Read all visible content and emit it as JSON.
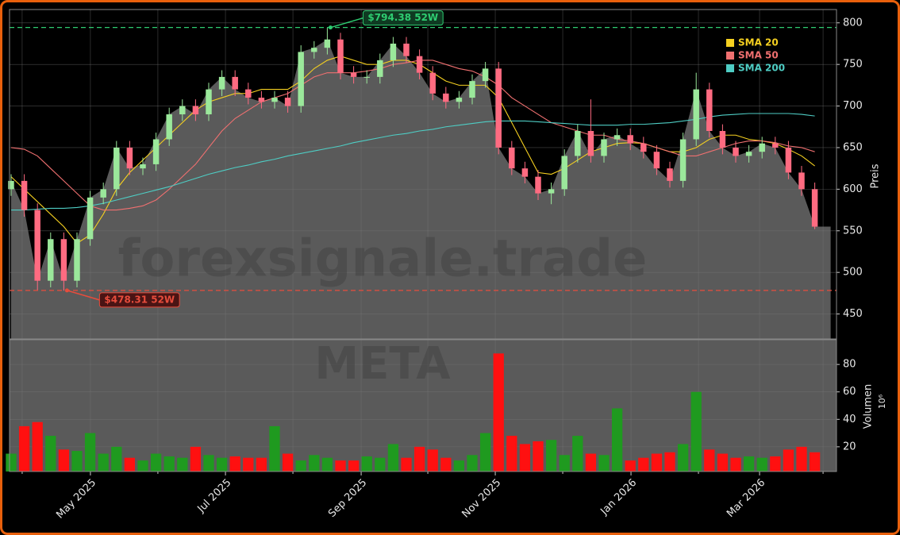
{
  "chart_data": {
    "type": "candlestick",
    "watermark": "forexsignale.trade",
    "symbol": "META",
    "y_label": "Preis",
    "xlim": [
      -0.12,
      62.65
    ],
    "xticks": [
      {
        "value": 6.02,
        "label": "May 2025"
      },
      {
        "value": 16.27,
        "label": "Jul 2025"
      },
      {
        "value": 26.57,
        "label": "Sep 2025"
      },
      {
        "value": 36.75,
        "label": "Nov 2025"
      },
      {
        "value": 47.05,
        "label": "Jan 2026"
      },
      {
        "value": 56.81,
        "label": "Mar 2026"
      }
    ],
    "xminor": [
      0.84,
      11.14,
      21.39,
      31.63,
      41.87,
      52.17,
      61.63
    ],
    "ylim": [
      420,
      816
    ],
    "yticks": [
      450,
      500,
      550,
      600,
      650,
      700,
      750,
      800
    ],
    "grid": true,
    "up_color": "#9be89b",
    "down_color": "#ff6b81",
    "area_color": "#5a5a5a",
    "open": [
      600,
      610,
      575,
      490,
      540,
      490,
      540,
      590,
      600,
      650,
      625,
      630,
      660,
      690,
      700,
      690,
      720,
      735,
      720,
      710,
      705,
      710,
      700,
      765,
      770,
      780,
      740,
      735,
      735,
      755,
      775,
      760,
      740,
      715,
      705,
      710,
      730,
      745,
      650,
      625,
      615,
      595,
      600,
      640,
      670,
      640,
      660,
      665,
      655,
      645,
      625,
      610,
      660,
      720,
      670,
      650,
      640,
      645,
      655,
      650,
      620,
      600
    ],
    "high": [
      618,
      618,
      583,
      548,
      548,
      548,
      598,
      608,
      658,
      658,
      638,
      668,
      698,
      708,
      708,
      728,
      743,
      743,
      728,
      718,
      718,
      718,
      773,
      778,
      794,
      788,
      748,
      743,
      763,
      783,
      783,
      768,
      748,
      723,
      718,
      738,
      753,
      753,
      658,
      633,
      623,
      608,
      648,
      678,
      708,
      668,
      673,
      673,
      663,
      653,
      633,
      668,
      740,
      728,
      678,
      658,
      653,
      663,
      663,
      658,
      628,
      608
    ],
    "low": [
      592,
      567,
      478,
      482,
      478,
      482,
      532,
      582,
      592,
      617,
      617,
      622,
      652,
      682,
      682,
      682,
      712,
      712,
      702,
      697,
      697,
      692,
      692,
      757,
      762,
      732,
      727,
      727,
      727,
      747,
      752,
      732,
      707,
      697,
      697,
      702,
      722,
      642,
      617,
      607,
      587,
      582,
      592,
      632,
      632,
      632,
      652,
      647,
      637,
      617,
      602,
      602,
      652,
      662,
      642,
      632,
      632,
      637,
      642,
      612,
      592,
      552
    ],
    "close": [
      610,
      575,
      490,
      540,
      490,
      540,
      590,
      600,
      650,
      625,
      630,
      660,
      690,
      700,
      690,
      720,
      735,
      720,
      710,
      705,
      710,
      700,
      765,
      770,
      780,
      740,
      735,
      735,
      755,
      775,
      760,
      740,
      715,
      705,
      710,
      730,
      745,
      650,
      625,
      615,
      595,
      600,
      640,
      670,
      640,
      660,
      665,
      655,
      645,
      625,
      610,
      660,
      720,
      670,
      650,
      640,
      645,
      655,
      650,
      620,
      600,
      555
    ],
    "series": [
      {
        "name": "SMA 20",
        "color": "#f5d020",
        "values": [
          615,
          600,
          585,
          570,
          555,
          535,
          545,
          570,
          600,
          620,
          635,
          650,
          665,
          680,
          695,
          705,
          710,
          715,
          715,
          720,
          720,
          720,
          730,
          745,
          755,
          760,
          755,
          750,
          750,
          755,
          755,
          750,
          740,
          730,
          725,
          725,
          725,
          710,
          680,
          650,
          620,
          618,
          625,
          635,
          645,
          650,
          655,
          656,
          655,
          650,
          645,
          645,
          650,
          660,
          665,
          665,
          660,
          658,
          655,
          648,
          640,
          628
        ]
      },
      {
        "name": "SMA 50",
        "color": "#f07070",
        "values": [
          650,
          648,
          640,
          625,
          610,
          595,
          580,
          575,
          575,
          577,
          580,
          587,
          600,
          615,
          630,
          650,
          670,
          685,
          695,
          705,
          710,
          715,
          725,
          735,
          740,
          740,
          740,
          742,
          745,
          750,
          752,
          755,
          755,
          750,
          745,
          742,
          735,
          725,
          710,
          700,
          690,
          680,
          675,
          670,
          665,
          665,
          660,
          658,
          655,
          650,
          645,
          640,
          640,
          645,
          650,
          655,
          658,
          658,
          656,
          652,
          650,
          645
        ]
      },
      {
        "name": "SMA 200",
        "color": "#4ecdc4",
        "values": [
          575,
          575,
          576,
          577,
          577,
          578,
          580,
          583,
          587,
          591,
          595,
          599,
          603,
          608,
          613,
          618,
          622,
          626,
          629,
          633,
          636,
          640,
          643,
          646,
          649,
          652,
          656,
          659,
          662,
          665,
          667,
          670,
          672,
          675,
          677,
          679,
          681,
          682,
          682,
          682,
          681,
          680,
          679,
          678,
          677,
          677,
          677,
          678,
          678,
          679,
          680,
          682,
          684,
          687,
          689,
          690,
          691,
          691,
          691,
          691,
          690,
          688
        ]
      }
    ],
    "annotations": [
      {
        "value": 794.38,
        "label": "$794.38 52W",
        "color": "#2ecc71",
        "index": 24
      },
      {
        "value": 478.31,
        "label": "$478.31 52W",
        "color": "#e74c3c",
        "index": 4
      }
    ],
    "volume": {
      "label": "Volumen",
      "scale": "10⁶",
      "ylim": [
        2,
        98
      ],
      "yticks": [
        20,
        40,
        60,
        80
      ],
      "up_color": "#1f9a1f",
      "down_color": "#ff1010",
      "values": [
        15,
        35,
        38,
        28,
        18,
        17,
        30,
        15,
        20,
        12,
        10,
        15,
        13,
        12,
        20,
        14,
        12,
        13,
        12,
        12,
        35,
        15,
        10,
        14,
        12,
        10,
        10,
        13,
        12,
        22,
        12,
        20,
        18,
        12,
        10,
        14,
        30,
        88,
        28,
        22,
        24,
        25,
        14,
        28,
        15,
        14,
        48,
        10,
        12,
        15,
        16,
        22,
        60,
        18,
        15,
        12,
        13,
        12,
        13,
        18,
        20,
        16
      ]
    },
    "legend": "upper right"
  }
}
